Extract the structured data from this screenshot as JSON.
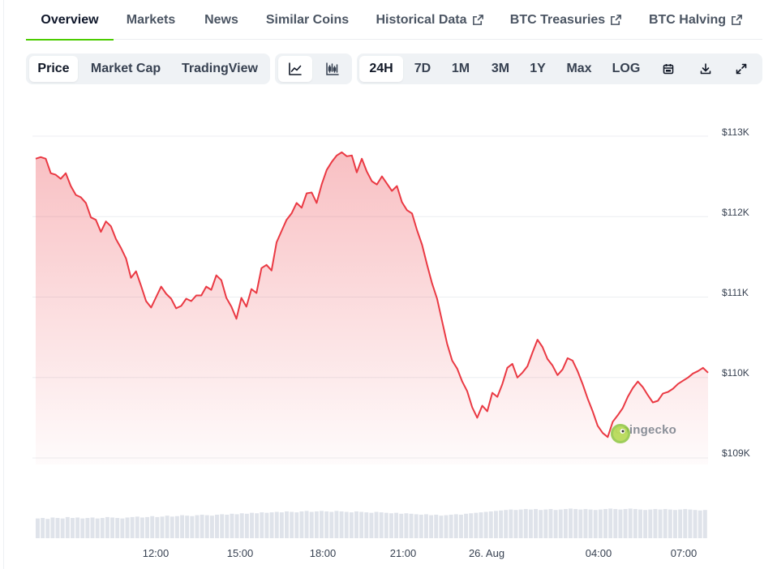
{
  "tabs": [
    {
      "label": "Overview",
      "active": true
    },
    {
      "label": "Markets"
    },
    {
      "label": "News"
    },
    {
      "label": "Similar Coins"
    },
    {
      "label": "Historical Data",
      "external": true
    },
    {
      "label": "BTC Treasuries",
      "external": true
    },
    {
      "label": "BTC Halving",
      "external": true
    }
  ],
  "toolbar": {
    "views": [
      {
        "label": "Price",
        "active": true
      },
      {
        "label": "Market Cap"
      },
      {
        "label": "TradingView"
      }
    ],
    "chart_types": [
      {
        "icon": "line-chart-icon",
        "active": true
      },
      {
        "icon": "candlestick-chart-icon"
      }
    ],
    "ranges": [
      {
        "label": "24H",
        "active": true
      },
      {
        "label": "7D"
      },
      {
        "label": "1M"
      },
      {
        "label": "3M"
      },
      {
        "label": "1Y"
      },
      {
        "label": "Max"
      },
      {
        "label": "LOG"
      }
    ],
    "actions": [
      {
        "icon": "calendar-icon"
      },
      {
        "icon": "download-icon"
      },
      {
        "icon": "expand-icon"
      }
    ]
  },
  "colors": {
    "accent": "#4bcc00",
    "line": "#ea3943",
    "fill": "#ea3943",
    "volume": "#dfe3ea",
    "grid": "#eceef1"
  },
  "watermark": {
    "text": "coingecko"
  },
  "chart_data": {
    "type": "area",
    "x_unit": "hours",
    "x_range": [
      9.0,
      8.6
    ],
    "y_ticks": [
      113000,
      112000,
      111000,
      110000,
      109000
    ],
    "y_tick_labels": [
      "$113K",
      "$112K",
      "$111K",
      "$110K",
      "$109K"
    ],
    "ylim": [
      109000,
      113000
    ],
    "x_ticks": [
      {
        "label": "12:00"
      },
      {
        "label": "15:00"
      },
      {
        "label": "18:00"
      },
      {
        "label": "21:00"
      },
      {
        "label": "26. Aug"
      },
      {
        "label": "04:00"
      },
      {
        "label": "07:00"
      }
    ],
    "series": [
      {
        "values": [
          112720,
          112740,
          112720,
          112540,
          112520,
          112470,
          112540,
          112380,
          112270,
          112240,
          112170,
          111990,
          111960,
          111810,
          111940,
          111880,
          111720,
          111610,
          111480,
          111240,
          111320,
          111140,
          110950,
          110870,
          111000,
          111130,
          111040,
          110980,
          110860,
          110890,
          110980,
          110950,
          111020,
          111020,
          111130,
          111090,
          111270,
          111210,
          110990,
          110880,
          110730,
          110990,
          110880,
          111100,
          111050,
          111360,
          111400,
          111330,
          111680,
          111820,
          111960,
          112040,
          112170,
          112110,
          112290,
          112300,
          112170,
          112400,
          112580,
          112680,
          112760,
          112800,
          112750,
          112760,
          112550,
          112720,
          112560,
          112440,
          112400,
          112500,
          112410,
          112320,
          112380,
          112180,
          112080,
          112040,
          111830,
          111650,
          111400,
          111170,
          110980,
          110700,
          110420,
          110210,
          110110,
          109950,
          109830,
          109630,
          109500,
          109650,
          109580,
          109810,
          109760,
          109920,
          110120,
          110170,
          110000,
          110060,
          110140,
          110310,
          110470,
          110380,
          110230,
          110150,
          110030,
          110100,
          110240,
          110210,
          110080,
          109920,
          109740,
          109580,
          109400,
          109310,
          109260,
          109450,
          109530,
          109620,
          109760,
          109870,
          109950,
          109880,
          109780,
          109690,
          109710,
          109800,
          109820,
          109860,
          109920,
          109960,
          110000,
          110050,
          110080,
          110120,
          110060
        ]
      }
    ],
    "volume": [
      0.42,
      0.43,
      0.41,
      0.44,
      0.43,
      0.42,
      0.45,
      0.43,
      0.44,
      0.42,
      0.43,
      0.44,
      0.42,
      0.43,
      0.45,
      0.44,
      0.43,
      0.42,
      0.44,
      0.45,
      0.46,
      0.44,
      0.45,
      0.47,
      0.45,
      0.46,
      0.48,
      0.46,
      0.47,
      0.49,
      0.48,
      0.47,
      0.49,
      0.5,
      0.49,
      0.48,
      0.5,
      0.51,
      0.5,
      0.52,
      0.51,
      0.53,
      0.52,
      0.54,
      0.53,
      0.55,
      0.54,
      0.55,
      0.56,
      0.55,
      0.57,
      0.56,
      0.55,
      0.57,
      0.58,
      0.56,
      0.57,
      0.58,
      0.57,
      0.56,
      0.58,
      0.57,
      0.56,
      0.55,
      0.57,
      0.56,
      0.55,
      0.54,
      0.56,
      0.55,
      0.54,
      0.53,
      0.54,
      0.52,
      0.53,
      0.52,
      0.51,
      0.5,
      0.51,
      0.49,
      0.5,
      0.48,
      0.49,
      0.5,
      0.51,
      0.5,
      0.52,
      0.53,
      0.54,
      0.55,
      0.56,
      0.57,
      0.58,
      0.59,
      0.6,
      0.61,
      0.6,
      0.61,
      0.62,
      0.61,
      0.62,
      0.6,
      0.61,
      0.62,
      0.6,
      0.61,
      0.62,
      0.63,
      0.62,
      0.61,
      0.62,
      0.61,
      0.6,
      0.61,
      0.62,
      0.63,
      0.62,
      0.61,
      0.62,
      0.63,
      0.62,
      0.61,
      0.6,
      0.61,
      0.62,
      0.61,
      0.62,
      0.61,
      0.6,
      0.61,
      0.62,
      0.61,
      0.6,
      0.59,
      0.6
    ]
  }
}
